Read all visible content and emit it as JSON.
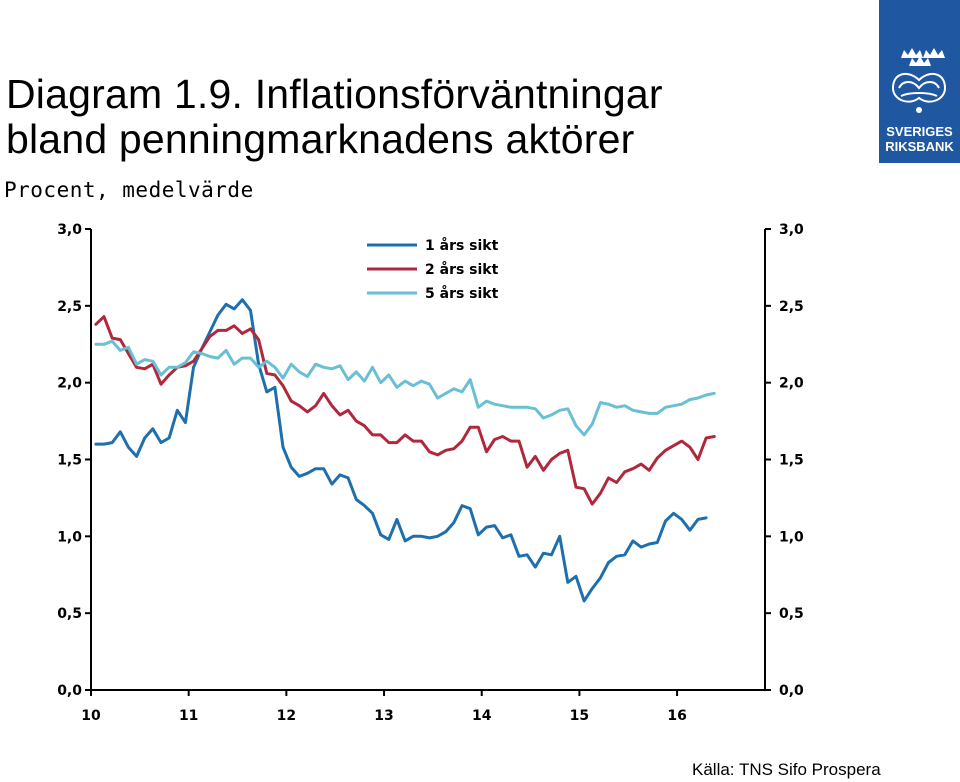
{
  "header": {
    "title_line1": "Diagram 1.9. Inflationsförväntningar",
    "title_line2": "bland penningmarknadens aktörer",
    "subtitle": "Procent, medelvärde"
  },
  "logo": {
    "line1": "SVERIGES",
    "line2": "RIKSBANK",
    "color": "#1f57a0"
  },
  "source": "Källa: TNS Sifo Prospera",
  "chart_data": {
    "type": "line",
    "title": "Diagram 1.9. Inflationsförväntningar bland penningmarknadens aktörer",
    "subtitle": "Procent, medelvärde",
    "ylim": [
      0,
      3
    ],
    "yticks": [
      "0,0",
      "0,5",
      "1,0",
      "1,5",
      "2,0",
      "2,5",
      "3,0"
    ],
    "xlim": [
      2010,
      2016.9
    ],
    "xticks": [
      {
        "x": 2010,
        "label": "10"
      },
      {
        "x": 2011,
        "label": "11"
      },
      {
        "x": 2012,
        "label": "12"
      },
      {
        "x": 2013,
        "label": "13"
      },
      {
        "x": 2014,
        "label": "14"
      },
      {
        "x": 2015,
        "label": "15"
      },
      {
        "x": 2016,
        "label": "16"
      }
    ],
    "grid": false,
    "legend_position": "top-center",
    "x_step_years": 0.0833,
    "x_start": 2010.05,
    "series": [
      {
        "name": "1 års sikt",
        "color": "#1f6fad",
        "values": [
          1.6,
          1.6,
          1.61,
          1.68,
          1.58,
          1.52,
          1.64,
          1.7,
          1.61,
          1.64,
          1.82,
          1.74,
          2.1,
          2.22,
          2.33,
          2.44,
          2.51,
          2.48,
          2.54,
          2.47,
          2.12,
          1.94,
          1.97,
          1.58,
          1.45,
          1.39,
          1.41,
          1.44,
          1.44,
          1.34,
          1.4,
          1.38,
          1.24,
          1.2,
          1.15,
          1.01,
          0.98,
          1.11,
          0.97,
          1.0,
          1.0,
          0.99,
          1.0,
          1.03,
          1.09,
          1.2,
          1.18,
          1.01,
          1.06,
          1.07,
          0.99,
          1.01,
          0.87,
          0.88,
          0.8,
          0.89,
          0.88,
          1.0,
          0.7,
          0.74,
          0.58,
          0.66,
          0.73,
          0.83,
          0.87,
          0.88,
          0.97,
          0.93,
          0.95,
          0.96,
          1.1,
          1.15,
          1.11,
          1.04,
          1.11,
          1.12
        ]
      },
      {
        "name": "2 års sikt",
        "color": "#b0283c",
        "values": [
          2.38,
          2.43,
          2.29,
          2.28,
          2.19,
          2.1,
          2.09,
          2.12,
          1.99,
          2.05,
          2.1,
          2.11,
          2.14,
          2.22,
          2.3,
          2.34,
          2.34,
          2.37,
          2.32,
          2.35,
          2.28,
          2.06,
          2.05,
          1.98,
          1.88,
          1.85,
          1.81,
          1.85,
          1.93,
          1.85,
          1.79,
          1.82,
          1.75,
          1.72,
          1.66,
          1.66,
          1.61,
          1.61,
          1.66,
          1.62,
          1.62,
          1.55,
          1.53,
          1.56,
          1.57,
          1.62,
          1.71,
          1.71,
          1.55,
          1.63,
          1.65,
          1.62,
          1.62,
          1.45,
          1.52,
          1.43,
          1.5,
          1.54,
          1.56,
          1.32,
          1.31,
          1.21,
          1.28,
          1.38,
          1.35,
          1.42,
          1.44,
          1.47,
          1.43,
          1.51,
          1.56,
          1.59,
          1.62,
          1.58,
          1.5,
          1.64,
          1.65
        ]
      },
      {
        "name": "5 års sikt",
        "color": "#6bbfd4",
        "values": [
          2.25,
          2.25,
          2.27,
          2.21,
          2.23,
          2.12,
          2.15,
          2.14,
          2.05,
          2.1,
          2.1,
          2.13,
          2.2,
          2.19,
          2.17,
          2.16,
          2.21,
          2.12,
          2.16,
          2.16,
          2.1,
          2.14,
          2.1,
          2.03,
          2.12,
          2.07,
          2.04,
          2.12,
          2.1,
          2.09,
          2.11,
          2.02,
          2.07,
          2.01,
          2.1,
          2.0,
          2.05,
          1.97,
          2.01,
          1.98,
          2.01,
          1.99,
          1.9,
          1.93,
          1.96,
          1.94,
          2.02,
          1.84,
          1.88,
          1.86,
          1.85,
          1.84,
          1.84,
          1.84,
          1.83,
          1.77,
          1.79,
          1.82,
          1.83,
          1.72,
          1.66,
          1.73,
          1.87,
          1.86,
          1.84,
          1.85,
          1.82,
          1.81,
          1.8,
          1.8,
          1.84,
          1.85,
          1.86,
          1.89,
          1.9,
          1.92,
          1.93
        ]
      }
    ]
  }
}
